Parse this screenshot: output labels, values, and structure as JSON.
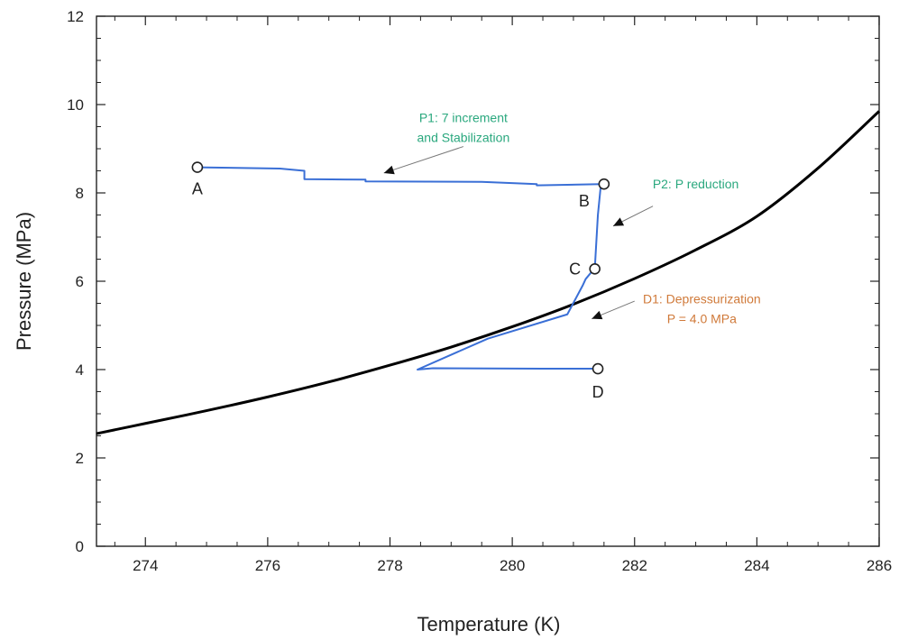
{
  "chart_data": {
    "type": "line",
    "xlabel": "Temperature (K)",
    "ylabel": "Pressure (MPa)",
    "xlim": [
      273.2,
      286.0
    ],
    "ylim": [
      0,
      12
    ],
    "xticks": [
      274,
      276,
      278,
      280,
      282,
      284,
      286
    ],
    "yticks": [
      0,
      2,
      4,
      6,
      8,
      10,
      12
    ],
    "grid": false,
    "series": [
      {
        "color": "#000000",
        "x": [
          273.2,
          274,
          275,
          276,
          277,
          278,
          279,
          280,
          281,
          282,
          283,
          284,
          285,
          286
        ],
        "y": [
          2.55,
          2.78,
          3.07,
          3.38,
          3.72,
          4.1,
          4.51,
          4.97,
          5.48,
          6.06,
          6.71,
          7.47,
          8.56,
          9.85
        ]
      },
      {
        "color": "#3a6fd6",
        "x": [
          274.85,
          276.2,
          276.6,
          276.6,
          277.6,
          277.6,
          279.5,
          280.4,
          280.4,
          281.45,
          281.4,
          281.35,
          281.2,
          281.15,
          280.9,
          279.6,
          278.45,
          278.7,
          280.5,
          281.4
        ],
        "y": [
          8.58,
          8.55,
          8.5,
          8.31,
          8.3,
          8.26,
          8.25,
          8.2,
          8.17,
          8.2,
          7.5,
          6.3,
          6.05,
          5.9,
          5.25,
          4.7,
          4.0,
          4.03,
          4.02,
          4.02
        ]
      }
    ],
    "points": [
      {
        "label": "A",
        "x": 274.85,
        "y": 8.58
      },
      {
        "label": "B",
        "x": 281.5,
        "y": 8.2
      },
      {
        "label": "C",
        "x": 281.35,
        "y": 6.28
      },
      {
        "label": "D",
        "x": 281.4,
        "y": 4.02
      }
    ],
    "annotations": [
      {
        "lines": [
          "P1: 7 increment",
          "and Stabilization"
        ],
        "color": "#2aa87e",
        "x": 279.2,
        "y": 9.6,
        "arrow_from": [
          279.2,
          9.05
        ],
        "arrow_to": [
          277.9,
          8.45
        ]
      },
      {
        "lines": [
          "P2: P reduction"
        ],
        "color": "#2aa87e",
        "x": 283.0,
        "y": 8.1,
        "arrow_from": [
          282.3,
          7.7
        ],
        "arrow_to": [
          281.65,
          7.25
        ]
      },
      {
        "lines": [
          "D1: Depressurization",
          "P = 4.0 MPa"
        ],
        "color": "#d07a3a",
        "x": 283.1,
        "y": 5.5,
        "arrow_from": [
          282.0,
          5.55
        ],
        "arrow_to": [
          281.3,
          5.15
        ]
      }
    ]
  }
}
